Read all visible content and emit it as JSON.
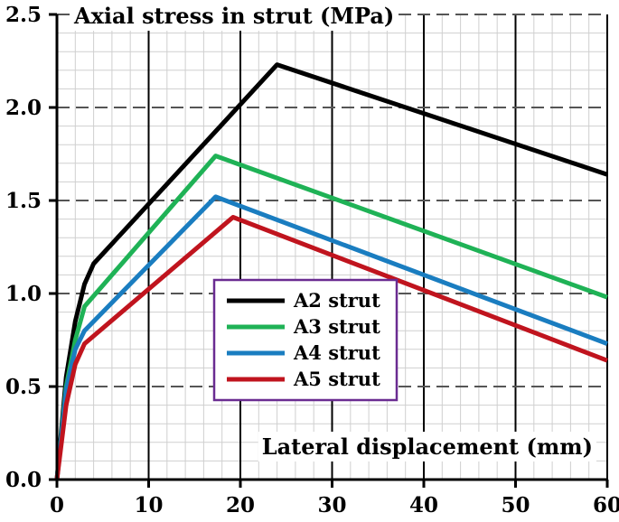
{
  "chart_data": {
    "type": "line",
    "title": "",
    "xlabel": "Lateral displacement (mm)",
    "ylabel": "Axial stress in strut (MPa)",
    "xlim": [
      0,
      60
    ],
    "ylim": [
      0,
      2.5
    ],
    "x_ticks": [
      "0",
      "10",
      "20",
      "30",
      "40",
      "50",
      "60"
    ],
    "y_ticks": [
      "0.0",
      "0.5",
      "1.0",
      "1.5",
      "2.0",
      "2.5"
    ],
    "grid": true,
    "legend_position": "center",
    "series": [
      {
        "name": "A2 strut",
        "color": "#000000",
        "x": [
          0,
          1,
          2,
          3,
          4,
          24,
          60
        ],
        "y": [
          0,
          0.55,
          0.85,
          1.05,
          1.16,
          2.23,
          1.64
        ]
      },
      {
        "name": "A3 strut",
        "color": "#1fb256",
        "x": [
          0,
          1,
          2,
          3,
          17.3,
          60
        ],
        "y": [
          0,
          0.5,
          0.75,
          0.93,
          1.74,
          0.98
        ]
      },
      {
        "name": "A4 strut",
        "color": "#1a7dc0",
        "x": [
          0,
          1,
          2,
          3,
          17.3,
          60
        ],
        "y": [
          0,
          0.48,
          0.7,
          0.8,
          1.52,
          0.73
        ]
      },
      {
        "name": "A5 strut",
        "color": "#c0141e",
        "x": [
          0,
          1,
          2,
          3,
          19.2,
          60
        ],
        "y": [
          0,
          0.4,
          0.62,
          0.73,
          1.41,
          0.64
        ]
      }
    ]
  }
}
